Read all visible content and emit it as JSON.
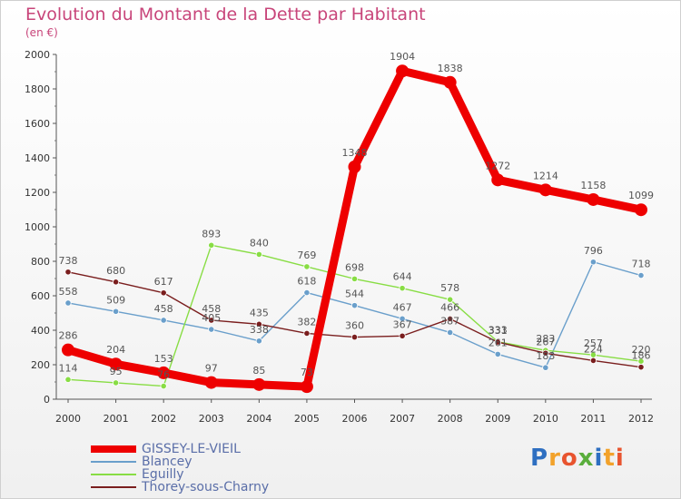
{
  "title": "Evolution du Montant de la Dette par Habitant",
  "unit": "(en €)",
  "logo": {
    "letters": [
      "P",
      "r",
      "o",
      "x",
      "i",
      "t",
      "i"
    ],
    "colors": [
      "#2e6fc1",
      "#f2a22b",
      "#e8542f",
      "#5aae3c",
      "#2e6fc1",
      "#f2a22b",
      "#e8542f"
    ]
  },
  "chart_data": {
    "type": "line",
    "title": "Evolution du Montant de la Dette par Habitant",
    "ylabel": "(en €)",
    "x": [
      "2000",
      "2001",
      "2002",
      "2003",
      "2004",
      "2005",
      "2006",
      "2007",
      "2008",
      "2009",
      "2010",
      "2011",
      "2012"
    ],
    "ylim": [
      0,
      2000
    ],
    "yticks": [
      0,
      200,
      400,
      600,
      800,
      1000,
      1200,
      1400,
      1600,
      1800,
      2000
    ],
    "grid": false,
    "legend_position": "bottom-left",
    "series": [
      {
        "name": "GISSEY-LE-VIEIL",
        "color": "#ee0000",
        "values": [
          286,
          204,
          153,
          97,
          85,
          73,
          1348,
          1904,
          1838,
          1272,
          1214,
          1158,
          1099
        ]
      },
      {
        "name": "Blancey",
        "color": "#6a9fcb",
        "values": [
          558,
          509,
          458,
          405,
          338,
          618,
          544,
          467,
          387,
          261,
          183,
          796,
          718
        ]
      },
      {
        "name": "Eguilly",
        "color": "#88dd44",
        "values": [
          114,
          95,
          76,
          893,
          840,
          769,
          698,
          644,
          578,
          333,
          283,
          257,
          220
        ]
      },
      {
        "name": "Thorey-sous-Charny",
        "color": "#7a1e1e",
        "values": [
          738,
          680,
          617,
          458,
          435,
          382,
          360,
          367,
          466,
          331,
          267,
          224,
          186
        ]
      }
    ]
  }
}
